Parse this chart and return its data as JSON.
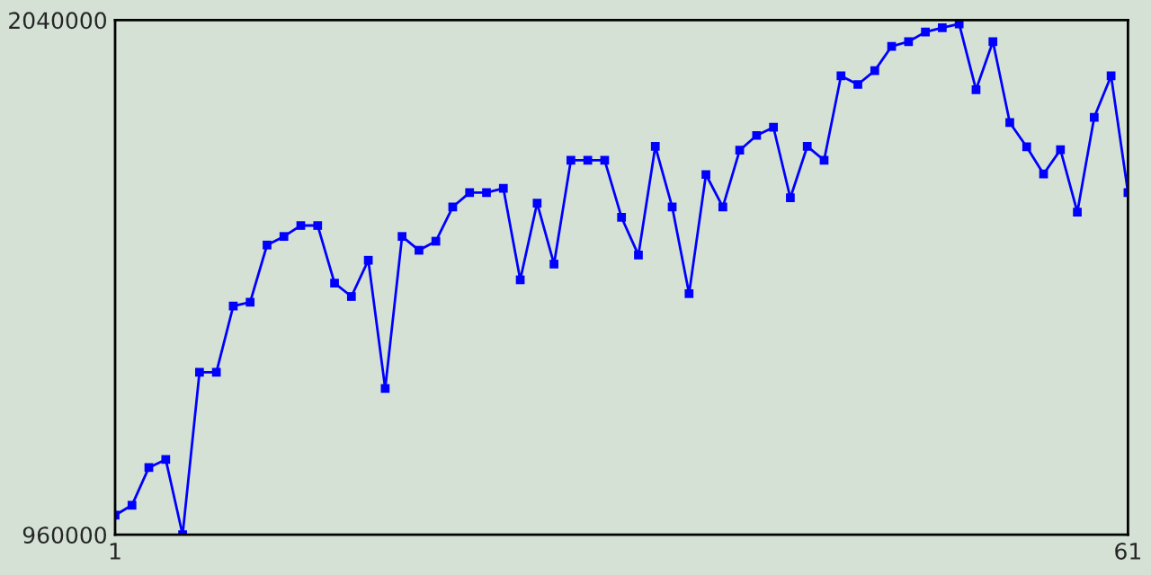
{
  "chart_data": {
    "type": "line",
    "x": [
      1,
      2,
      3,
      4,
      5,
      6,
      7,
      8,
      9,
      10,
      11,
      12,
      13,
      14,
      15,
      16,
      17,
      18,
      19,
      20,
      21,
      22,
      23,
      24,
      25,
      26,
      27,
      28,
      29,
      30,
      31,
      32,
      33,
      34,
      35,
      36,
      37,
      38,
      39,
      40,
      41,
      42,
      43,
      44,
      45,
      46,
      47,
      48,
      49,
      50,
      51,
      52,
      53,
      54,
      55,
      56,
      57,
      58,
      59,
      60,
      61
    ],
    "series": [
      {
        "color": "#0000ff",
        "values": [
          1001000,
          1022000,
          1101000,
          1118000,
          960000,
          1301000,
          1301000,
          1440000,
          1448000,
          1568000,
          1586000,
          1609000,
          1609000,
          1488000,
          1460000,
          1536000,
          1267000,
          1586000,
          1557000,
          1576000,
          1648000,
          1678000,
          1678000,
          1687000,
          1495000,
          1656000,
          1528000,
          1746000,
          1746000,
          1746000,
          1626000,
          1547000,
          1775000,
          1648000,
          1466000,
          1716000,
          1648000,
          1767000,
          1798000,
          1815000,
          1667000,
          1775000,
          1746000,
          1923000,
          1905000,
          1934000,
          1985000,
          1995000,
          2015000,
          2024000,
          2032000,
          1894000,
          1995000,
          1825000,
          1774000,
          1717000,
          1768000,
          1637000,
          1836000,
          1923000,
          1678000
        ]
      }
    ],
    "xlim": [
      1,
      61
    ],
    "xticks": [
      1,
      61
    ],
    "ylim": [
      960000,
      2040000
    ],
    "yticks": [
      960000,
      2040000
    ],
    "marker": "square",
    "line_style": "solid"
  }
}
